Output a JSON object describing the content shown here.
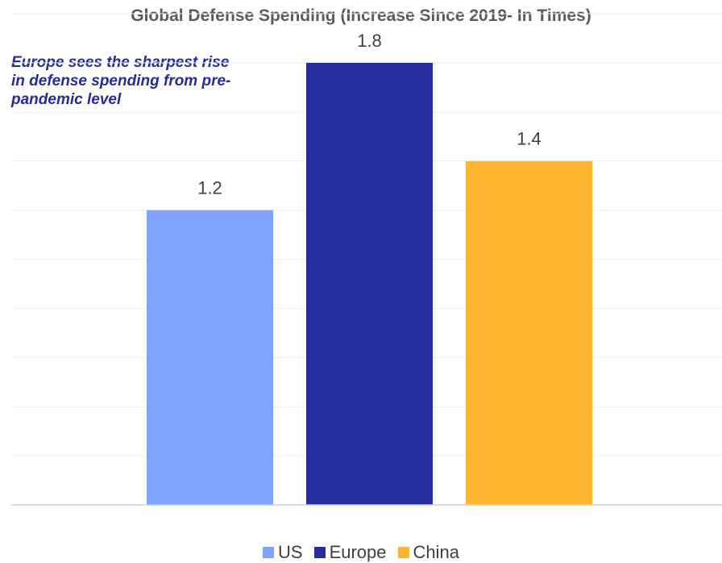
{
  "chart_data": {
    "type": "bar",
    "title": "Global Defense Spending  (Increase Since 2019- In Times)",
    "annotation": "Europe sees the sharpest rise in defense spending from pre-pandemic level",
    "categories": [
      "US",
      "Europe",
      "China"
    ],
    "values": [
      1.2,
      1.8,
      1.4
    ],
    "data_labels": [
      "1.2",
      "1.8",
      "1.4"
    ],
    "colors": [
      "#7fa2ff",
      "#252c9e",
      "#ffb432"
    ],
    "ylim": [
      0,
      2
    ],
    "grid": true,
    "legend": "bottom-center",
    "xlabel": "",
    "ylabel": ""
  }
}
